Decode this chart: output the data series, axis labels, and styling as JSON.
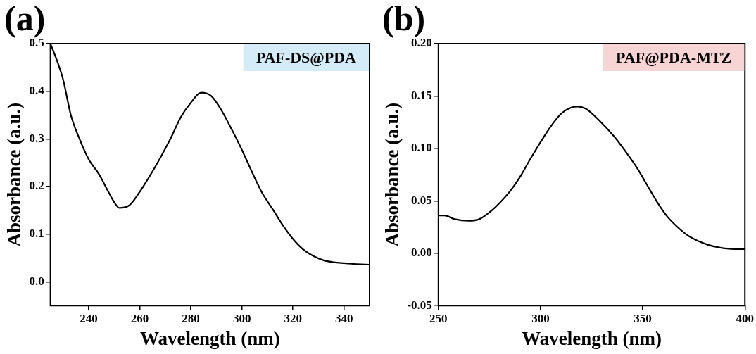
{
  "chart_data": [
    {
      "type": "line",
      "title": "(a)",
      "xlabel": "Wavelength (nm)",
      "ylabel": "Absorbance (a.u.)",
      "annotations": [
        "PAF-DS@PDA"
      ],
      "xlim": [
        225,
        350
      ],
      "xticks": [
        240,
        260,
        280,
        300,
        320,
        340
      ],
      "ylim": [
        -0.05,
        0.5
      ],
      "yticks": [
        {
          "value": 0,
          "label": "0.0"
        },
        0.1,
        0.2,
        0.3,
        0.4,
        0.5
      ],
      "grid": false,
      "legend": false,
      "marker": "none",
      "line_style": "solid",
      "series": [
        {
          "color": "#000000",
          "x": [
            225,
            228,
            230,
            233,
            236,
            240,
            244,
            248,
            250,
            252,
            256,
            260,
            264,
            268,
            272,
            276,
            280,
            284,
            288,
            292,
            296,
            300,
            304,
            308,
            312,
            316,
            320,
            324,
            328,
            332,
            336,
            340,
            345,
            350
          ],
          "values": [
            0.5,
            0.458,
            0.424,
            0.35,
            0.305,
            0.257,
            0.226,
            0.186,
            0.167,
            0.155,
            0.161,
            0.189,
            0.223,
            0.26,
            0.3,
            0.345,
            0.376,
            0.397,
            0.39,
            0.36,
            0.32,
            0.277,
            0.23,
            0.186,
            0.153,
            0.119,
            0.09,
            0.068,
            0.054,
            0.045,
            0.041,
            0.039,
            0.037,
            0.036
          ]
        }
      ]
    },
    {
      "type": "line",
      "title": "(b)",
      "xlabel": "Wavelength (nm)",
      "ylabel": "Absorbance (a.u.)",
      "annotations": [
        "PAF@PDA-MTZ"
      ],
      "xlim": [
        250,
        400
      ],
      "xticks": [
        250,
        300,
        350,
        400
      ],
      "ylim": [
        -0.05,
        0.2
      ],
      "yticks": [
        {
          "value": -0.05,
          "label": "-0.05"
        },
        {
          "value": 0,
          "label": "0.00"
        },
        {
          "value": 0.05,
          "label": "0.05"
        },
        {
          "value": 0.1,
          "label": "0.10"
        },
        {
          "value": 0.15,
          "label": "0.15"
        },
        {
          "value": 0.2,
          "label": "0.20"
        }
      ],
      "grid": false,
      "legend": false,
      "marker": "none",
      "line_style": "solid",
      "series": [
        {
          "color": "#000000",
          "x": [
            250,
            253,
            258,
            265,
            270,
            275,
            280,
            285,
            290,
            295,
            300,
            305,
            310,
            315,
            318,
            322,
            327,
            332,
            337,
            342,
            347,
            352,
            357,
            362,
            367,
            372,
            377,
            382,
            387,
            392,
            397,
            400
          ],
          "values": [
            0.036,
            0.036,
            0.0325,
            0.031,
            0.0325,
            0.039,
            0.048,
            0.059,
            0.073,
            0.09,
            0.106,
            0.121,
            0.133,
            0.139,
            0.14,
            0.138,
            0.13,
            0.12,
            0.109,
            0.096,
            0.082,
            0.0655,
            0.049,
            0.035,
            0.025,
            0.017,
            0.0117,
            0.008,
            0.0056,
            0.0043,
            0.004,
            0.004
          ]
        }
      ]
    }
  ]
}
